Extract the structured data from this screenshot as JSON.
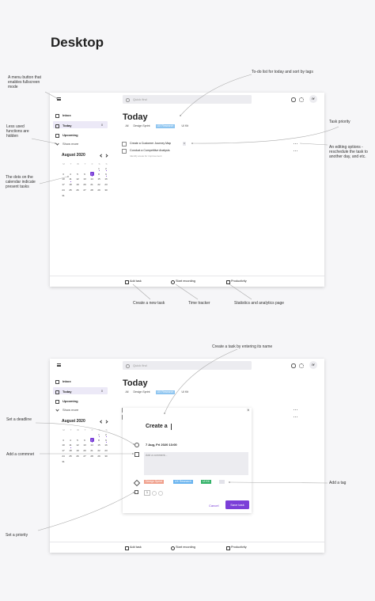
{
  "header": {
    "title": "Desktop"
  },
  "annotations": {
    "menu": "A menu button that enables fullscreen mode",
    "hidden": "Less used functions are hidden",
    "dots": "The dots on the calendar indicate present tasks",
    "todo": "To-do list for today and sort by tags",
    "priority": "Task priority",
    "editing": "An editing options - reschedule the task to another day, and etc.",
    "new_task": "Create a new task",
    "tracker": "Time tracker",
    "stats": "Statistics and analytics page",
    "create": "Create a task by entering its name",
    "deadline": "Set a deadline",
    "comment": "Add a commnet",
    "set_priority": "Set a priority",
    "tag": "Add a tag"
  },
  "app": {
    "search": "Quick find",
    "avatar": "IY",
    "nav": [
      "Inbox",
      "Today",
      "Upcoming"
    ],
    "today_count": "8",
    "show_more": "Show more",
    "calendar": {
      "month": "August 2020",
      "weekdays": [
        "M",
        "T",
        "W",
        "T",
        "F",
        "S",
        "S"
      ],
      "days": [
        "1",
        "2",
        "3",
        "4",
        "5",
        "6",
        "7",
        "8",
        "9",
        "10",
        "11",
        "12",
        "13",
        "14",
        "15",
        "16",
        "17",
        "18",
        "19",
        "20",
        "21",
        "22",
        "23",
        "24",
        "25",
        "26",
        "27",
        "28",
        "29",
        "30",
        "31"
      ]
    },
    "heading": "Today",
    "tags": [
      "All",
      "Design Sprint",
      "UX Research",
      "UI Kit"
    ],
    "tasks": [
      {
        "title": "Create a Customer Journey Map",
        "priority": "3"
      },
      {
        "title": "Conduct a Competitive Analysis",
        "note": "Identify areas for improvement"
      }
    ],
    "bottom": [
      "Add task",
      "Start recording",
      "Productivity"
    ]
  },
  "modal": {
    "name": "Create a",
    "date": "7 Aug, Fri 2020 13:00",
    "comment_placeholder": "Add a comment...",
    "tags": [
      "Design Sprint",
      "UX Research",
      "UI Kit"
    ],
    "priority": "1",
    "cancel": "Cancel",
    "save": "Save task"
  }
}
